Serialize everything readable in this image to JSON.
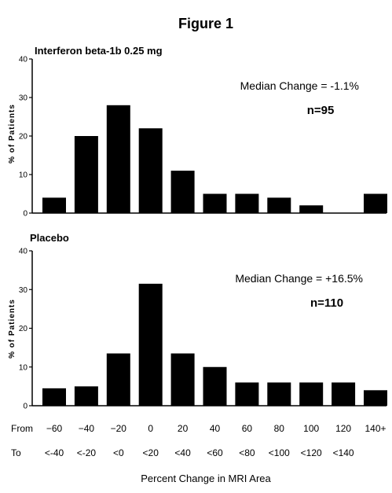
{
  "figure_title": "Figure 1",
  "x_axis": {
    "row_from_label": "From",
    "row_to_label": "To",
    "from_labels": [
      "-60",
      "-40",
      "-20",
      "0",
      "20",
      "40",
      "60",
      "80",
      "100",
      "120",
      "140+"
    ],
    "to_labels": [
      "<-40",
      "<-20",
      "<0",
      "<20",
      "<40",
      "<60",
      "<80",
      "<100",
      "<120",
      "<140",
      ""
    ],
    "xlabel": "Percent Change in MRI Area"
  },
  "chart_data": [
    {
      "type": "bar",
      "title": "Interferon beta-1b 0.25 mg",
      "ylabel": "% of Patients",
      "ylim": [
        0,
        40
      ],
      "yticks": [
        0,
        10,
        20,
        30,
        40
      ],
      "categories": [
        "-60 to <-40",
        "-40 to <-20",
        "-20 to <0",
        "0 to <20",
        "20 to <40",
        "40 to <60",
        "60 to <80",
        "80 to <100",
        "100 to <120",
        "120 to <140",
        "140+"
      ],
      "values": [
        4,
        20,
        28,
        22,
        11,
        5,
        5,
        4,
        2,
        0,
        5
      ],
      "annotation": "Median Change = -1.1%",
      "n_label": "n=95",
      "grid": false
    },
    {
      "type": "bar",
      "title": "Placebo",
      "ylabel": "% of Patients",
      "ylim": [
        0,
        40
      ],
      "yticks": [
        0,
        10,
        20,
        30,
        40
      ],
      "categories": [
        "-60 to <-40",
        "-40 to <-20",
        "-20 to <0",
        "0 to <20",
        "20 to <40",
        "40 to <60",
        "60 to <80",
        "80 to <100",
        "100 to <120",
        "120 to <140",
        "140+"
      ],
      "values": [
        4.5,
        5,
        13.5,
        31.5,
        13.5,
        10,
        6,
        6,
        6,
        6,
        4
      ],
      "annotation": "Median Change = +16.5%",
      "n_label": "n=110",
      "grid": false
    }
  ]
}
